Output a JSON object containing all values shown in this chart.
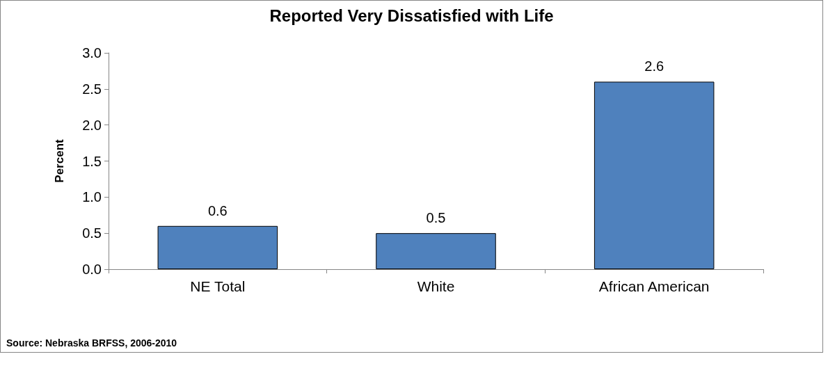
{
  "chart_data": {
    "type": "bar",
    "title": "Reported Very Dissatisfied with Life",
    "ylabel": "Percent",
    "categories": [
      "NE Total",
      "White",
      "African American"
    ],
    "values": [
      0.6,
      0.5,
      2.6
    ],
    "color": "#4f81bd",
    "ylim": [
      0,
      3
    ],
    "yticks": [
      {
        "value": 0,
        "label": "0.0"
      },
      0.5,
      {
        "value": 1,
        "label": "1.0"
      },
      1.5,
      {
        "value": 2,
        "label": "2.0"
      },
      2.5,
      {
        "value": 3,
        "label": "3.0"
      }
    ],
    "grid": false,
    "data_labels": true,
    "annotations": [
      "Source: Nebraska BRFSS, 2006-2010"
    ]
  }
}
